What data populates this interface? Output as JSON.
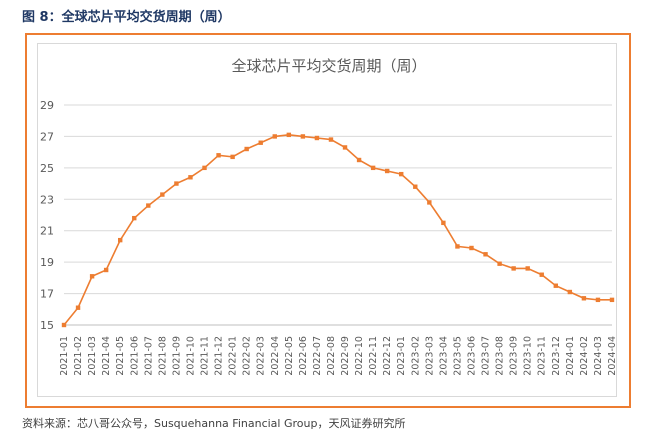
{
  "caption": "图 8：全球芯片平均交货周期（周）",
  "source": "资料来源：芯八哥公众号，Susquehanna Financial Group，天风证券研究所",
  "colors": {
    "line": "#ED7D31",
    "frame": "#ED7D31",
    "grid": "#d9d9d9",
    "caption": "#1f3864"
  },
  "chart_data": {
    "type": "line",
    "title": "全球芯片平均交货周期（周）",
    "xlabel": "",
    "ylabel": "",
    "ylim": [
      15,
      29
    ],
    "yticks": [
      15,
      17,
      19,
      21,
      23,
      25,
      27,
      29
    ],
    "grid": true,
    "legend": "none",
    "categories": [
      "2021-01",
      "2021-02",
      "2021-03",
      "2021-04",
      "2021-05",
      "2021-06",
      "2021-07",
      "2021-08",
      "2021-09",
      "2021-10",
      "2021-11",
      "2021-12",
      "2022-01",
      "2022-02",
      "2022-03",
      "2022-04",
      "2022-05",
      "2022-06",
      "2022-07",
      "2022-08",
      "2022-09",
      "2022-10",
      "2022-11",
      "2022-12",
      "2023-01",
      "2023-02",
      "2023-03",
      "2023-04",
      "2023-05",
      "2023-06",
      "2023-07",
      "2023-08",
      "2023-09",
      "2023-10",
      "2023-11",
      "2023-12",
      "2024-01",
      "2024-02",
      "2024-03",
      "2024-04"
    ],
    "series": [
      {
        "name": "",
        "values": [
          15.0,
          16.1,
          18.1,
          18.5,
          20.4,
          21.8,
          22.6,
          23.3,
          24.0,
          24.4,
          25.0,
          25.8,
          25.7,
          26.2,
          26.6,
          27.0,
          27.1,
          27.0,
          26.9,
          26.8,
          26.3,
          25.5,
          25.0,
          24.8,
          24.6,
          23.8,
          22.8,
          21.5,
          20.0,
          19.9,
          19.5,
          18.9,
          18.6,
          18.6,
          18.2,
          17.5,
          17.1,
          16.7,
          16.6,
          16.6
        ]
      }
    ]
  }
}
